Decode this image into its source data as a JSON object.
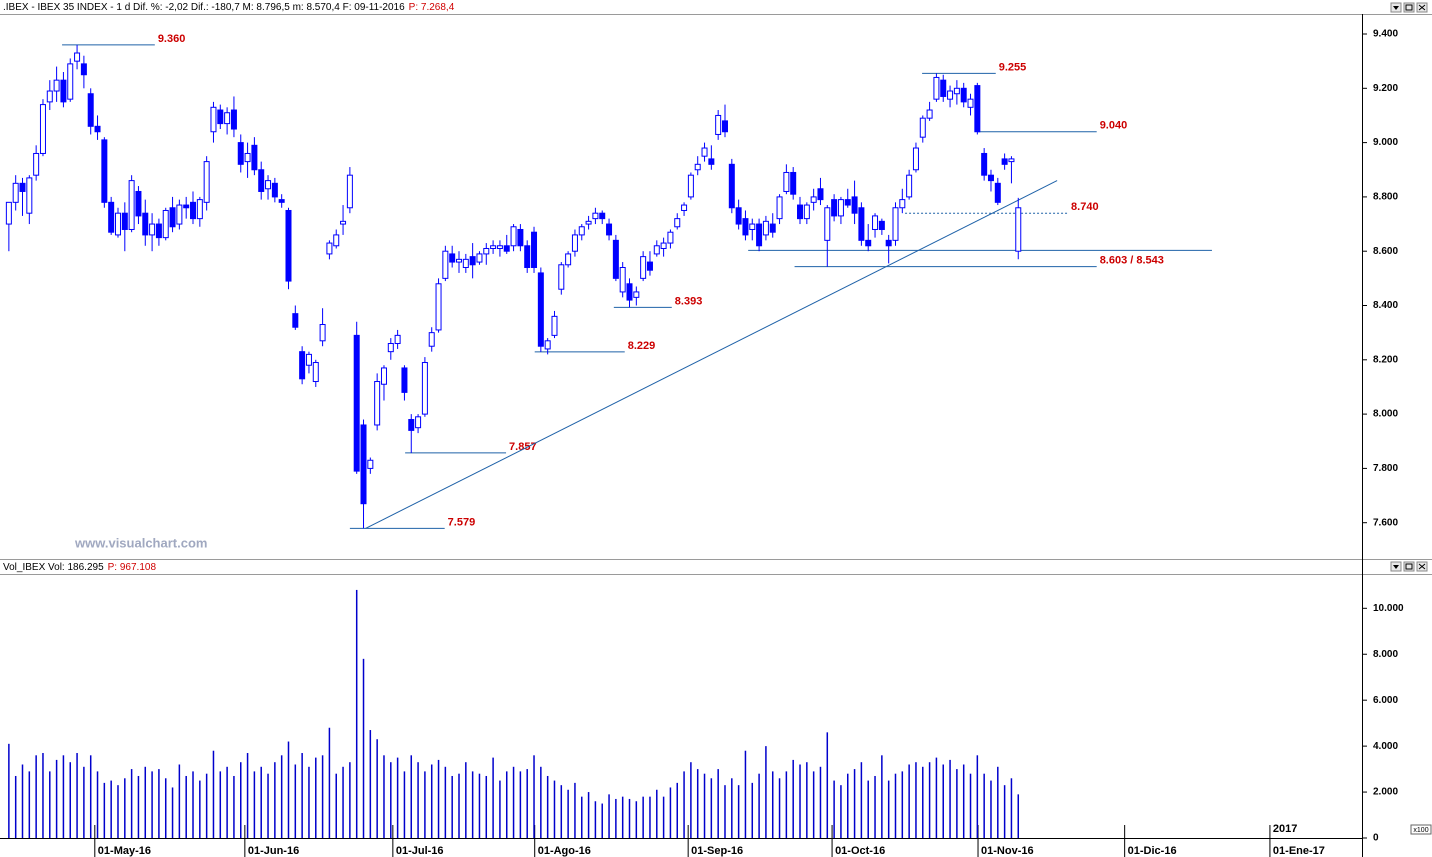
{
  "chart_data": [
    {
      "type": "candlestick",
      "title": ".IBEX - IBEX 35 INDEX - 1 d Dif. %: -2,02 Dif.: -180,7 M: 8.796,5 m: 8.570,4 F: 09-11-2016",
      "subtitle": "P: 7.268,4",
      "watermark": "www.visualchart.com",
      "color": "#0000ff",
      "up_color": "#ffffff",
      "down_color": "#0000ff",
      "annotation_color": "#1f62a8",
      "xlim": [
        -1.3,
        198.4
      ],
      "ylim": [
        7470,
        9470
      ],
      "yticks": [
        {
          "value": 7600,
          "label": "7.600"
        },
        {
          "value": 7800,
          "label": "7.800"
        },
        {
          "value": 8000,
          "label": "8.000"
        },
        {
          "value": 8200,
          "label": "8.200"
        },
        {
          "value": 8400,
          "label": "8.400"
        },
        {
          "value": 8600,
          "label": "8.600"
        },
        {
          "value": 8800,
          "label": "8.800"
        },
        {
          "value": 9000,
          "label": "9.000"
        },
        {
          "value": 9200,
          "label": "9.200"
        },
        {
          "value": 9400,
          "label": "9.400"
        }
      ],
      "open": [
        8700,
        8780,
        8850,
        8740,
        8880,
        8960,
        9150,
        9190,
        9230,
        9160,
        9300,
        9290,
        9180,
        9060,
        9010,
        8780,
        8660,
        8740,
        8680,
        8820,
        8740,
        8660,
        8700,
        8650,
        8760,
        8700,
        8770,
        8780,
        8720,
        8780,
        9040,
        9120,
        9070,
        9120,
        9000,
        8930,
        8990,
        8900,
        8830,
        8850,
        8790,
        8750,
        8370,
        8230,
        8180,
        8120,
        8270,
        8590,
        8620,
        8700,
        8760,
        8290,
        7960,
        7800,
        7960,
        8110,
        8230,
        8260,
        8170,
        7980,
        7950,
        8000,
        8250,
        8310,
        8500,
        8590,
        8560,
        8540,
        8580,
        8560,
        8590,
        8610,
        8610,
        8620,
        8620,
        8680,
        8620,
        8670,
        8520,
        8240,
        8290,
        8460,
        8550,
        8600,
        8660,
        8700,
        8720,
        8740,
        8700,
        8640,
        8450,
        8480,
        8430,
        8500,
        8560,
        8590,
        8610,
        8630,
        8690,
        8750,
        8800,
        8900,
        8950,
        8940,
        9030,
        9080,
        8920,
        8760,
        8720,
        8680,
        8700,
        8660,
        8700,
        8720,
        8820,
        8890,
        8770,
        8720,
        8780,
        8830,
        8640,
        8790,
        8730,
        8790,
        8800,
        8760,
        8640,
        8680,
        8710,
        8640,
        8640,
        8760,
        8800,
        8900,
        9020,
        9090,
        9160,
        9230,
        9160,
        9180,
        9200,
        9130,
        9210,
        8960,
        8880,
        8850,
        8940,
        8930,
        8600
      ],
      "high": [
        8780,
        8880,
        8870,
        8880,
        8990,
        9160,
        9230,
        9280,
        9260,
        9310,
        9360,
        9320,
        9200,
        9100,
        9020,
        8800,
        8760,
        8780,
        8880,
        8840,
        8790,
        8740,
        8720,
        8760,
        8800,
        8790,
        8800,
        8820,
        8800,
        8950,
        9150,
        9140,
        9130,
        9170,
        9030,
        9000,
        9020,
        8930,
        8880,
        8870,
        8810,
        8760,
        8400,
        8250,
        8230,
        8200,
        8390,
        8640,
        8680,
        8770,
        8910,
        8340,
        7980,
        7840,
        8150,
        8180,
        8280,
        8310,
        8180,
        8000,
        8000,
        8210,
        8320,
        8500,
        8620,
        8620,
        8600,
        8590,
        8630,
        8600,
        8630,
        8640,
        8640,
        8660,
        8700,
        8700,
        8640,
        8690,
        8540,
        8280,
        8380,
        8560,
        8600,
        8680,
        8700,
        8730,
        8760,
        8750,
        8720,
        8660,
        8560,
        8500,
        8470,
        8600,
        8600,
        8640,
        8650,
        8680,
        8740,
        8780,
        8890,
        8950,
        9000,
        8990,
        9120,
        9140,
        8940,
        8790,
        8750,
        8720,
        8720,
        8730,
        8740,
        8810,
        8920,
        8910,
        8800,
        8780,
        8830,
        8870,
        8770,
        8810,
        8800,
        8830,
        8860,
        8780,
        8700,
        8740,
        8720,
        8660,
        8780,
        8830,
        8900,
        9000,
        9100,
        9150,
        9255,
        9250,
        9210,
        9230,
        9220,
        9180,
        9220,
        8980,
        8900,
        8870,
        8960,
        8950,
        8796.5
      ],
      "low": [
        8600,
        8750,
        8730,
        8700,
        8860,
        8950,
        9120,
        9150,
        9130,
        9150,
        9270,
        9200,
        9030,
        9010,
        8760,
        8660,
        8650,
        8600,
        8670,
        8700,
        8620,
        8600,
        8620,
        8640,
        8670,
        8680,
        8720,
        8700,
        8690,
        8750,
        9000,
        9050,
        9030,
        9020,
        8890,
        8870,
        8880,
        8790,
        8790,
        8780,
        8760,
        8460,
        8310,
        8110,
        8150,
        8100,
        8250,
        8570,
        8610,
        8660,
        8740,
        7780,
        7579,
        7780,
        7940,
        8050,
        8200,
        8240,
        8050,
        7857,
        7930,
        7990,
        8230,
        8300,
        8490,
        8540,
        8520,
        8520,
        8500,
        8550,
        8550,
        8590,
        8580,
        8590,
        8600,
        8600,
        8520,
        8520,
        8229,
        8220,
        8280,
        8440,
        8540,
        8580,
        8640,
        8680,
        8700,
        8700,
        8640,
        8490,
        8430,
        8393,
        8400,
        8490,
        8510,
        8580,
        8580,
        8610,
        8680,
        8730,
        8790,
        8880,
        8930,
        8900,
        9010,
        9020,
        8740,
        8680,
        8640,
        8640,
        8600,
        8640,
        8650,
        8700,
        8810,
        8790,
        8700,
        8700,
        8750,
        8770,
        8543,
        8710,
        8700,
        8760,
        8700,
        8620,
        8600,
        8650,
        8660,
        8555,
        8620,
        8740,
        8790,
        8890,
        9000,
        9080,
        9150,
        9150,
        9130,
        9140,
        9130,
        9100,
        9030,
        8860,
        8820,
        8770,
        8900,
        8850,
        8570.4
      ],
      "close": [
        8780,
        8850,
        8820,
        8870,
        8960,
        9140,
        9190,
        9230,
        9150,
        9290,
        9330,
        9250,
        9060,
        9040,
        8780,
        8670,
        8740,
        8680,
        8860,
        8730,
        8660,
        8700,
        8650,
        8750,
        8690,
        8770,
        8760,
        8720,
        8790,
        8930,
        9130,
        9070,
        9110,
        9050,
        8920,
        8960,
        8900,
        8820,
        8860,
        8800,
        8780,
        8490,
        8320,
        8130,
        8220,
        8190,
        8330,
        8630,
        8660,
        8710,
        8880,
        7790,
        7670,
        7830,
        8120,
        8170,
        8260,
        8290,
        8080,
        7940,
        7990,
        8190,
        8300,
        8480,
        8600,
        8560,
        8570,
        8570,
        8550,
        8590,
        8610,
        8620,
        8620,
        8600,
        8690,
        8620,
        8540,
        8540,
        8250,
        8270,
        8360,
        8550,
        8590,
        8660,
        8690,
        8710,
        8740,
        8720,
        8660,
        8500,
        8540,
        8420,
        8450,
        8580,
        8530,
        8620,
        8630,
        8670,
        8720,
        8770,
        8880,
        8920,
        8980,
        8920,
        9100,
        9040,
        8760,
        8700,
        8660,
        8700,
        8620,
        8710,
        8670,
        8800,
        8890,
        8810,
        8720,
        8770,
        8800,
        8790,
        8760,
        8730,
        8790,
        8770,
        8740,
        8640,
        8620,
        8730,
        8680,
        8620,
        8760,
        8790,
        8880,
        8980,
        9090,
        9120,
        9240,
        9170,
        9190,
        9200,
        9150,
        9160,
        9040,
        8880,
        8860,
        8780,
        8920,
        8940,
        8760
      ],
      "annotations": [
        {
          "label": "9.360",
          "levels": [
            {
              "value": 9360,
              "x": [
                7.8,
                21.4
              ]
            }
          ]
        },
        {
          "label": "9.255",
          "levels": [
            {
              "value": 9255,
              "x": [
                133.9,
                144.7
              ]
            }
          ]
        },
        {
          "label": "9.040",
          "levels": [
            {
              "value": 9040,
              "x": [
                142.1,
                159.5
              ]
            }
          ]
        },
        {
          "label": "8.740",
          "dashed": true,
          "levels": [
            {
              "value": 8740,
              "x": [
                131.4,
                155.3
              ]
            }
          ]
        },
        {
          "label": "8.603 / 8.543",
          "levels": [
            {
              "value": 8603,
              "x": [
                108.4,
                176.4
              ]
            },
            {
              "value": 8543,
              "x": [
                115.2,
                159.5
              ]
            }
          ]
        },
        {
          "label": "8.393",
          "levels": [
            {
              "value": 8393,
              "x": [
                88.7,
                97.2
              ]
            }
          ]
        },
        {
          "label": "8.229",
          "levels": [
            {
              "value": 8229,
              "x": [
                77.1,
                90.3
              ]
            }
          ]
        },
        {
          "label": "7.857",
          "levels": [
            {
              "value": 7857,
              "x": [
                58.1,
                72.9
              ]
            }
          ]
        },
        {
          "label": "7.579",
          "levels": [
            {
              "value": 7579,
              "x": [
                50.0,
                63.9
              ]
            }
          ]
        }
      ],
      "trendline": {
        "x": [
          52.3,
          153.7
        ],
        "y": [
          7579,
          8860
        ]
      }
    },
    {
      "type": "bar",
      "title": "Vol_IBEX Vol: 186.295",
      "subtitle": "P: 967.108",
      "unit_label": "x100",
      "color": "#0000cc",
      "xlim": [
        -1.3,
        198.4
      ],
      "ylim": [
        0,
        11450
      ],
      "yticks": [
        0,
        {
          "value": 2000,
          "label": "2.000"
        },
        {
          "value": 4000,
          "label": "4.000"
        },
        {
          "value": 6000,
          "label": "6.000"
        },
        {
          "value": 8000,
          "label": "8.000"
        },
        {
          "value": 10000,
          "label": "10.000"
        }
      ],
      "xticks": [
        {
          "value": 12.6,
          "label": "01-May-16"
        },
        {
          "value": 34.6,
          "label": "01-Jun-16"
        },
        {
          "value": 56.3,
          "label": "01-Jul-16"
        },
        {
          "value": 77.1,
          "label": "01-Ago-16"
        },
        {
          "value": 99.6,
          "label": "01-Sep-16"
        },
        {
          "value": 120.7,
          "label": "01-Oct-16"
        },
        {
          "value": 142.1,
          "label": "01-Nov-16"
        },
        {
          "value": 163.6,
          "label": "01-Dic-16"
        },
        {
          "value": 184.9,
          "label": "01-Ene-17"
        }
      ],
      "year_label": "2017",
      "values": [
        4100,
        2700,
        3200,
        2900,
        3600,
        3700,
        2900,
        3400,
        3600,
        3300,
        3700,
        3100,
        3600,
        2900,
        2400,
        2500,
        2300,
        2600,
        3000,
        2700,
        3100,
        2900,
        3000,
        2600,
        2200,
        3200,
        2700,
        2900,
        2500,
        2800,
        3800,
        2900,
        3100,
        2700,
        3300,
        3700,
        2900,
        3100,
        2800,
        3300,
        3600,
        4200,
        3200,
        3700,
        3100,
        3500,
        3600,
        4800,
        2800,
        3100,
        3300,
        10800,
        7800,
        4700,
        4300,
        3600,
        3300,
        3500,
        2900,
        3600,
        3300,
        2900,
        3200,
        3400,
        3100,
        2700,
        2800,
        3300,
        2900,
        2800,
        2700,
        3500,
        2500,
        2900,
        3100,
        2900,
        3000,
        3600,
        3100,
        2700,
        2500,
        2300,
        2100,
        2400,
        1800,
        2000,
        1600,
        1500,
        1900,
        1700,
        1800,
        1700,
        1600,
        1800,
        1800,
        2100,
        1800,
        2200,
        2400,
        2900,
        3300,
        3000,
        2800,
        2600,
        3000,
        2300,
        2600,
        2300,
        3800,
        2400,
        2800,
        4000,
        2900,
        2600,
        2900,
        3400,
        3200,
        3300,
        2900,
        3100,
        4600,
        2500,
        2300,
        2800,
        3000,
        3300,
        2500,
        2700,
        3600,
        2500,
        2800,
        2900,
        3200,
        3300,
        3100,
        3300,
        3500,
        3200,
        3400,
        3000,
        3200,
        2800,
        3600,
        2800,
        2500,
        3100,
        2300,
        2600,
        1900
      ]
    }
  ]
}
